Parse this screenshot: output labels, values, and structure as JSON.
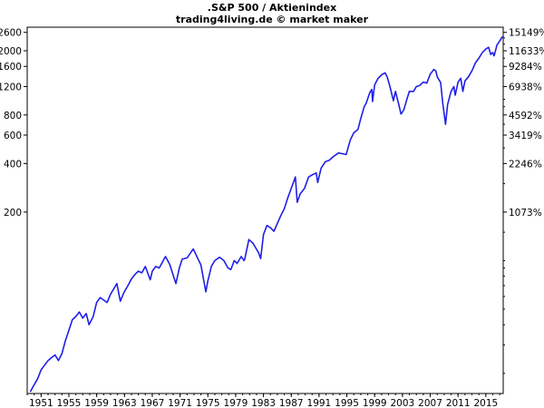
{
  "chart_data": {
    "type": "line",
    "title": ".S&P 500 / Aktienindex",
    "subtitle": "trading4living.de © market maker",
    "x_scale": "linear",
    "y_scale": "log",
    "ylim": [
      15,
      2800
    ],
    "xlim": [
      1949.0,
      2017.5
    ],
    "x_ticks": [
      "1951",
      "1955",
      "1959",
      "1963",
      "1967",
      "1971",
      "1975",
      "1979",
      "1983",
      "1987",
      "1991",
      "1995",
      "1999",
      "2003",
      "2007",
      "2011",
      "2015"
    ],
    "y_ticks_left": [
      200,
      400,
      600,
      800,
      1200,
      1600,
      2000,
      2600
    ],
    "y_ticks_right": [
      {
        "label": "1073%",
        "value": 200
      },
      {
        "label": "2246%",
        "value": 400
      },
      {
        "label": "3419%",
        "value": 600
      },
      {
        "label": "4592%",
        "value": 800
      },
      {
        "label": "6938%",
        "value": 1200
      },
      {
        "label": "9284%",
        "value": 1600
      },
      {
        "label": "11633%",
        "value": 2000
      },
      {
        "label": "15149%",
        "value": 2600
      }
    ],
    "grid": false,
    "series": [
      {
        "color": "#1f1fe8",
        "points": [
          [
            1949.5,
            15.5
          ],
          [
            1950.0,
            17.0
          ],
          [
            1950.5,
            18.5
          ],
          [
            1951.0,
            21.0
          ],
          [
            1951.5,
            22.5
          ],
          [
            1952.0,
            24.0
          ],
          [
            1952.5,
            25.0
          ],
          [
            1953.0,
            26.0
          ],
          [
            1953.5,
            24.0
          ],
          [
            1954.0,
            26.5
          ],
          [
            1954.5,
            32.0
          ],
          [
            1955.0,
            37.0
          ],
          [
            1955.5,
            43.0
          ],
          [
            1956.0,
            45.0
          ],
          [
            1956.5,
            48.0
          ],
          [
            1957.0,
            44.0
          ],
          [
            1957.5,
            47.0
          ],
          [
            1957.9,
            40.0
          ],
          [
            1958.5,
            45.0
          ],
          [
            1959.0,
            55.0
          ],
          [
            1959.5,
            59.0
          ],
          [
            1960.0,
            57.0
          ],
          [
            1960.5,
            55.0
          ],
          [
            1961.0,
            62.0
          ],
          [
            1961.9,
            72.0
          ],
          [
            1962.4,
            56.0
          ],
          [
            1962.9,
            63.0
          ],
          [
            1963.5,
            70.0
          ],
          [
            1964.0,
            77.0
          ],
          [
            1964.5,
            82.0
          ],
          [
            1965.0,
            86.0
          ],
          [
            1965.5,
            84.0
          ],
          [
            1966.0,
            92.0
          ],
          [
            1966.7,
            76.0
          ],
          [
            1967.0,
            86.0
          ],
          [
            1967.5,
            92.0
          ],
          [
            1968.0,
            90.0
          ],
          [
            1968.9,
            106.0
          ],
          [
            1969.5,
            95.0
          ],
          [
            1970.4,
            72.0
          ],
          [
            1970.9,
            90.0
          ],
          [
            1971.3,
            102.0
          ],
          [
            1972.0,
            104.0
          ],
          [
            1972.9,
            118.0
          ],
          [
            1973.5,
            104.0
          ],
          [
            1974.0,
            94.0
          ],
          [
            1974.7,
            64.0
          ],
          [
            1975.0,
            75.0
          ],
          [
            1975.5,
            92.0
          ],
          [
            1976.0,
            100.0
          ],
          [
            1976.7,
            105.0
          ],
          [
            1977.3,
            100.0
          ],
          [
            1977.9,
            90.0
          ],
          [
            1978.3,
            88.0
          ],
          [
            1978.8,
            100.0
          ],
          [
            1979.2,
            96.0
          ],
          [
            1979.8,
            106.0
          ],
          [
            1980.2,
            100.0
          ],
          [
            1980.3,
            102.0
          ],
          [
            1980.9,
            135.0
          ],
          [
            1981.5,
            128.0
          ],
          [
            1982.3,
            112.0
          ],
          [
            1982.6,
            103.0
          ],
          [
            1983.0,
            145.0
          ],
          [
            1983.5,
            165.0
          ],
          [
            1984.0,
            160.0
          ],
          [
            1984.5,
            152.0
          ],
          [
            1985.0,
            170.0
          ],
          [
            1985.5,
            190.0
          ],
          [
            1986.0,
            210.0
          ],
          [
            1986.5,
            245.0
          ],
          [
            1987.0,
            280.0
          ],
          [
            1987.6,
            330.0
          ],
          [
            1987.85,
            230.0
          ],
          [
            1988.3,
            260.0
          ],
          [
            1988.9,
            280.0
          ],
          [
            1989.5,
            330.0
          ],
          [
            1990.0,
            340.0
          ],
          [
            1990.6,
            350.0
          ],
          [
            1990.8,
            305.0
          ],
          [
            1991.3,
            375.0
          ],
          [
            1991.9,
            410.0
          ],
          [
            1992.5,
            420.0
          ],
          [
            1993.0,
            440.0
          ],
          [
            1993.8,
            465.0
          ],
          [
            1994.3,
            460.0
          ],
          [
            1994.9,
            455.0
          ],
          [
            1995.5,
            560.0
          ],
          [
            1996.0,
            620.0
          ],
          [
            1996.6,
            650.0
          ],
          [
            1997.0,
            760.0
          ],
          [
            1997.5,
            900.0
          ],
          [
            1997.8,
            950.0
          ],
          [
            1998.3,
            1100.0
          ],
          [
            1998.6,
            1150.0
          ],
          [
            1998.7,
            970.0
          ],
          [
            1999.0,
            1230.0
          ],
          [
            1999.5,
            1350.0
          ],
          [
            2000.0,
            1420.0
          ],
          [
            2000.5,
            1460.0
          ],
          [
            2000.8,
            1380.0
          ],
          [
            2001.2,
            1200.0
          ],
          [
            2001.7,
            980.0
          ],
          [
            2002.0,
            1120.0
          ],
          [
            2002.5,
            920.0
          ],
          [
            2002.8,
            810.0
          ],
          [
            2003.2,
            860.0
          ],
          [
            2003.6,
            990.0
          ],
          [
            2004.0,
            1120.0
          ],
          [
            2004.6,
            1120.0
          ],
          [
            2005.0,
            1200.0
          ],
          [
            2005.5,
            1220.0
          ],
          [
            2006.0,
            1280.0
          ],
          [
            2006.5,
            1260.0
          ],
          [
            2007.0,
            1430.0
          ],
          [
            2007.5,
            1530.0
          ],
          [
            2007.8,
            1500.0
          ],
          [
            2008.0,
            1380.0
          ],
          [
            2008.5,
            1270.0
          ],
          [
            2008.8,
            950.0
          ],
          [
            2009.2,
            700.0
          ],
          [
            2009.5,
            930.0
          ],
          [
            2010.0,
            1120.0
          ],
          [
            2010.4,
            1200.0
          ],
          [
            2010.6,
            1060.0
          ],
          [
            2011.0,
            1280.0
          ],
          [
            2011.4,
            1350.0
          ],
          [
            2011.7,
            1120.0
          ],
          [
            2012.0,
            1300.0
          ],
          [
            2012.5,
            1380.0
          ],
          [
            2013.0,
            1500.0
          ],
          [
            2013.5,
            1680.0
          ],
          [
            2014.0,
            1800.0
          ],
          [
            2014.5,
            1950.0
          ],
          [
            2015.0,
            2050.0
          ],
          [
            2015.4,
            2100.0
          ],
          [
            2015.7,
            1900.0
          ],
          [
            2016.0,
            1950.0
          ],
          [
            2016.2,
            1860.0
          ],
          [
            2016.6,
            2170.0
          ],
          [
            2017.0,
            2300.0
          ],
          [
            2017.3,
            2420.0
          ],
          [
            2017.5,
            2450.0
          ]
        ]
      }
    ]
  }
}
